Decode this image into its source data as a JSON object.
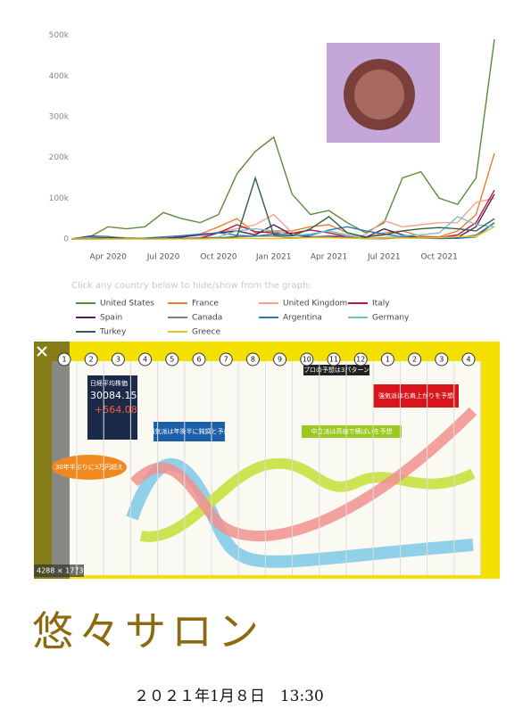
{
  "chart_data": {
    "type": "line",
    "categories": [
      null,
      null,
      "Apr 2020",
      null,
      null,
      "Jul 2020",
      null,
      null,
      "Oct 2020",
      null,
      null,
      "Jan 2021",
      null,
      null,
      "Apr 2021",
      null,
      null,
      "Jul 2021",
      null,
      null,
      "Oct 2021",
      null,
      null,
      null
    ],
    "ylim": [
      0,
      510000
    ],
    "yticks": [
      0,
      {
        "value": 100000,
        "label": "100k"
      },
      {
        "value": 200000,
        "label": "200k"
      },
      {
        "value": 300000,
        "label": "300k"
      },
      {
        "value": 400000,
        "label": "400k"
      },
      {
        "value": 500000,
        "label": "500k"
      }
    ],
    "grid": false,
    "legend_title": "Click any country below to hide/show from the graph:",
    "series": [
      {
        "name": "United States",
        "color": "#5b8c3a",
        "values": [
          0,
          5000,
          30000,
          25000,
          30000,
          65000,
          50000,
          40000,
          60000,
          160000,
          215000,
          250000,
          110000,
          60000,
          70000,
          40000,
          15000,
          40000,
          150000,
          165000,
          100000,
          85000,
          150000,
          490000
        ]
      },
      {
        "name": "France",
        "color": "#f07d2e",
        "values": [
          0,
          2000,
          5000,
          1000,
          500,
          1000,
          4000,
          12000,
          30000,
          50000,
          15000,
          20000,
          20000,
          30000,
          35000,
          15000,
          3000,
          15000,
          20000,
          7000,
          5000,
          20000,
          60000,
          210000
        ]
      },
      {
        "name": "United Kingdom",
        "color": "#f4a28c",
        "values": [
          0,
          1000,
          5000,
          3000,
          1000,
          700,
          1000,
          4000,
          18000,
          25000,
          35000,
          60000,
          15000,
          6000,
          3000,
          2500,
          10000,
          45000,
          30000,
          35000,
          40000,
          40000,
          90000,
          100000
        ]
      },
      {
        "name": "Italy",
        "color": "#c0143c",
        "values": [
          0,
          5000,
          4000,
          1000,
          300,
          200,
          800,
          1500,
          15000,
          35000,
          18000,
          15000,
          14000,
          22000,
          15000,
          6000,
          1000,
          3000,
          6000,
          4000,
          3000,
          10000,
          40000,
          120000
        ]
      },
      {
        "name": "Spain",
        "color": "#4b1e5a",
        "values": [
          0,
          7000,
          6000,
          1000,
          300,
          1500,
          5000,
          10000,
          15000,
          20000,
          10000,
          35000,
          10000,
          5000,
          7000,
          4000,
          4000,
          25000,
          10000,
          3000,
          2000,
          4000,
          30000,
          110000
        ]
      },
      {
        "name": "Canada",
        "color": "#8a7a7a",
        "values": [
          0,
          500,
          1500,
          1200,
          500,
          400,
          400,
          1000,
          2500,
          5000,
          7000,
          7000,
          3000,
          4000,
          8000,
          6000,
          1000,
          500,
          3000,
          4000,
          2500,
          2500,
          10000,
          40000
        ]
      },
      {
        "name": "Argentina",
        "color": "#2a7ab0",
        "values": [
          0,
          100,
          200,
          500,
          2000,
          5000,
          8000,
          12000,
          15000,
          9000,
          7000,
          12000,
          8000,
          9000,
          22000,
          30000,
          20000,
          12000,
          6000,
          2000,
          1000,
          1500,
          5000,
          40000
        ]
      },
      {
        "name": "Germany",
        "color": "#6cc4c4",
        "values": [
          0,
          4000,
          5000,
          1000,
          500,
          500,
          1200,
          1800,
          5000,
          20000,
          25000,
          20000,
          8000,
          12000,
          20000,
          10000,
          1000,
          1500,
          8000,
          10000,
          15000,
          55000,
          35000,
          30000
        ]
      },
      {
        "name": "Turkey",
        "color": "#2e5e4e",
        "values": [
          0,
          1000,
          4000,
          1500,
          1200,
          1000,
          1200,
          1600,
          2000,
          6000,
          150000,
          10000,
          8000,
          25000,
          55000,
          15000,
          5000,
          10000,
          20000,
          25000,
          28000,
          25000,
          20000,
          50000
        ]
      },
      {
        "name": "Greece",
        "color": "#e8c020",
        "values": [
          0,
          50,
          50,
          20,
          20,
          30,
          200,
          300,
          800,
          2500,
          1000,
          800,
          1500,
          3000,
          3000,
          2500,
          500,
          2500,
          2500,
          2000,
          3000,
          6000,
          6000,
          30000
        ]
      }
    ]
  },
  "stock_image": {
    "months": [
      "1",
      "2",
      "3",
      "4",
      "5",
      "6",
      "7",
      "8",
      "9",
      "10",
      "11",
      "12",
      "1",
      "2",
      "3",
      "4"
    ],
    "index_name": "日経平均株価",
    "index_value": "30084.15",
    "index_change": "+564.08",
    "bubble": "30年半ぶりに3万円超え",
    "pattern_heading": "プロの予想は3パターン",
    "bear": "弱気派は年後半に鈍調と予想",
    "neutral": "中立派は高値で横ばいを予想",
    "bull": "強気派は右肩上がりを予想",
    "size": "4288 × 1773"
  },
  "title": "悠々サロン",
  "date": "２０２１年1月８日　13:30"
}
